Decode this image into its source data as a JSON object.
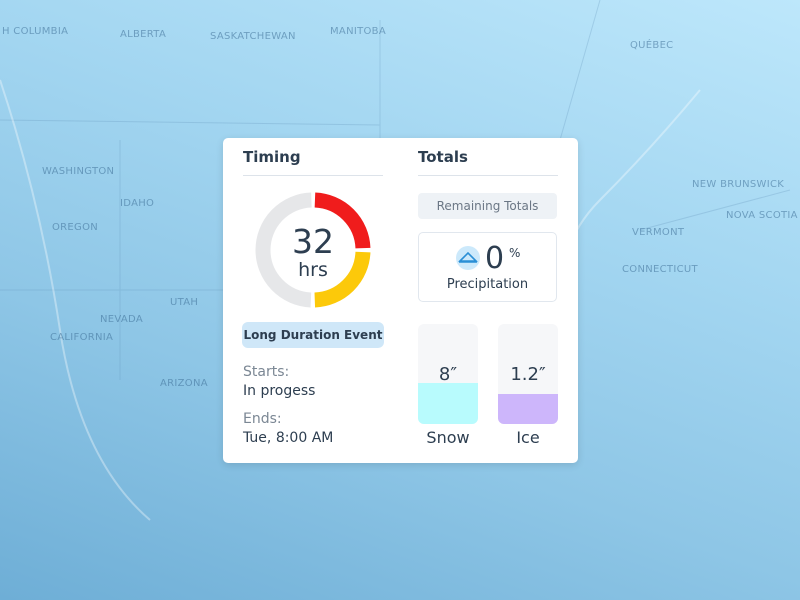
{
  "map": {
    "labels": [
      "H COLUMBIA",
      "ALBERTA",
      "SASKATCHEWAN",
      "MANITOBA",
      "QUÉBEC",
      "WASHINGTON",
      "IDAHO",
      "OREGON",
      "UTAH",
      "NEVADA",
      "CALIFORNIA",
      "ARIZONA",
      "NEW BRUNSWICK",
      "NOVA SCOTIA",
      "VERMONT",
      "CONNECTICUT"
    ]
  },
  "card": {
    "timing": {
      "title": "Timing",
      "duration": "32",
      "unit": "hrs",
      "badge": "Long Duration Event",
      "starts_label": "Starts:",
      "starts_value": "In progess",
      "ends_label": "Ends:",
      "ends_value": "Tue, 8:00 AM"
    },
    "totals": {
      "title": "Totals",
      "tab": "Remaining Totals",
      "precip_value": "0",
      "precip_unit": "%",
      "precip_label": "Precipitation",
      "snow_value": "8″",
      "snow_label": "Snow",
      "ice_value": "1.2″",
      "ice_label": "Ice"
    }
  }
}
